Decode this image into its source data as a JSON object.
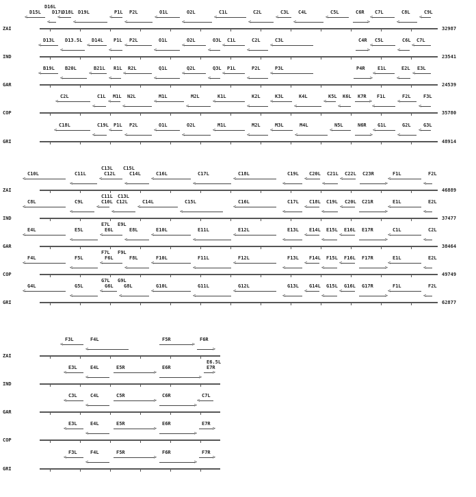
{
  "blocks": [
    {
      "rows": [
        {
          "strain": "ZAI",
          "length": "32987",
          "genes": [
            "D15L",
            "D17L",
            "D18L",
            "D19L",
            "P1L",
            "P2L",
            "O1L",
            "O2L",
            "C1L",
            "C2L",
            "C3L",
            "C4L",
            "C5L",
            "C6R",
            "C7L",
            "C8L",
            "C9L"
          ],
          "upper": [
            "D16L"
          ]
        },
        {
          "strain": "IND",
          "length": "23541",
          "genes": [
            "D13L",
            "D13.5L",
            "D14L",
            "P1L",
            "P2L",
            "O1L",
            "O2L",
            "O3L",
            "C1L",
            "C2L",
            "C3L",
            "C4R",
            "C5L",
            "C6L",
            "C7L"
          ],
          "upper": []
        },
        {
          "strain": "GAR",
          "length": "24539",
          "genes": [
            "B19L",
            "B20L",
            "B21L",
            "R1L",
            "R2L",
            "Q1L",
            "Q2L",
            "Q3L",
            "P1L",
            "P2L",
            "P3L",
            "P4R",
            "E1L",
            "E2L",
            "E3L"
          ],
          "upper": []
        },
        {
          "strain": "COP",
          "length": "35780",
          "genes": [
            "C2L",
            "C1L",
            "M1L",
            "N2L",
            "M1L",
            "M2L",
            "K1L",
            "K2L",
            "K3L",
            "K4L",
            "K5L",
            "K6L",
            "K7R",
            "F1L",
            "F2L",
            "F3L"
          ],
          "upper": []
        },
        {
          "strain": "GRI",
          "length": "48914",
          "genes": [
            "C18L",
            "C19L",
            "P1L",
            "P2L",
            "O1L",
            "O2L",
            "M1L",
            "M2L",
            "M3L",
            "M4L",
            "N5L",
            "N6R",
            "G1L",
            "G2L",
            "G3L"
          ],
          "upper": []
        }
      ]
    },
    {
      "rows": [
        {
          "strain": "ZAI",
          "length": "46889",
          "genes": [
            "C10L",
            "C11L",
            "C12L",
            "C14L",
            "C16L",
            "C17L",
            "C18L",
            "C19L",
            "C20L",
            "C21L",
            "C22L",
            "C23R",
            "F1L",
            "F2L"
          ],
          "upper": [
            "C13L",
            "C15L"
          ]
        },
        {
          "strain": "IND",
          "length": "37477",
          "genes": [
            "C8L",
            "C9L",
            "C10L",
            "C12L",
            "C14L",
            "C15L",
            "C16L",
            "C17L",
            "C18L",
            "C19L",
            "C20L",
            "C21R",
            "E1L",
            "E2L"
          ],
          "upper": [
            "C11L",
            "C13L"
          ]
        },
        {
          "strain": "GAR",
          "length": "38464",
          "genes": [
            "E4L",
            "E5L",
            "E6L",
            "E8L",
            "E10L",
            "E11L",
            "E12L",
            "E13L",
            "E14L",
            "E15L",
            "E16L",
            "E17R",
            "C1L",
            "C2L"
          ],
          "upper": [
            "E7L",
            "E9L"
          ]
        },
        {
          "strain": "COP",
          "length": "49749",
          "genes": [
            "F4L",
            "F5L",
            "F6L",
            "F8L",
            "F10L",
            "F11L",
            "F12L",
            "F13L",
            "F14L",
            "F15L",
            "F16L",
            "F17R",
            "E1L",
            "E2L"
          ],
          "upper": [
            "F7L",
            "F9L"
          ]
        },
        {
          "strain": "GRI",
          "length": "62877",
          "genes": [
            "G4L",
            "G5L",
            "G6L",
            "G8L",
            "G10L",
            "G11L",
            "G12L",
            "G13L",
            "G14L",
            "G15L",
            "G16L",
            "G17R",
            "F1L",
            "F2L"
          ],
          "upper": [
            "G7L",
            "G9L"
          ]
        }
      ]
    },
    {
      "rows": [
        {
          "strain": "ZAI",
          "genes": [
            "F3L",
            "F4L",
            "F5R",
            "F6R"
          ],
          "upper": []
        },
        {
          "strain": "IND",
          "genes": [
            "E3L",
            "E4L",
            "E5R",
            "E6R",
            "E7R"
          ],
          "upper": [
            "E6.5L"
          ]
        },
        {
          "strain": "GAR",
          "genes": [
            "C3L",
            "C4L",
            "C5R",
            "C6R",
            "C7L"
          ],
          "upper": []
        },
        {
          "strain": "COP",
          "genes": [
            "E3L",
            "E4L",
            "E5R",
            "E6R",
            "E7R"
          ],
          "upper": []
        },
        {
          "strain": "GRI",
          "genes": [
            "F3L",
            "F4L",
            "F5R",
            "F6R",
            "F7R"
          ],
          "upper": []
        }
      ]
    }
  ]
}
